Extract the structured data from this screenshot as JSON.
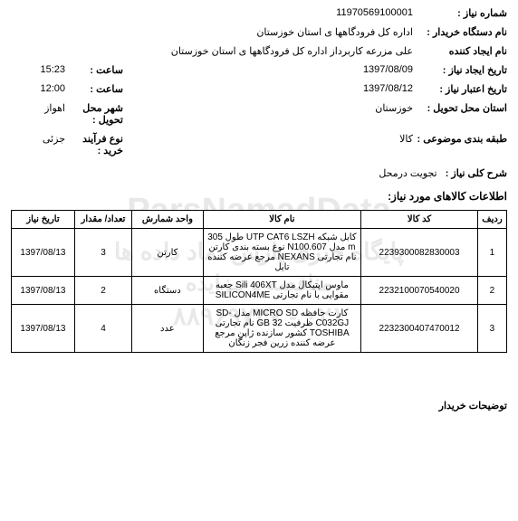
{
  "watermark_line1": "ParsNamadData",
  "watermark_line2": "پایگاه خبری پارس نماد داده ها",
  "watermark_line3": "مناقصه و مزایده",
  "watermark_line4": "۰۲۱ - ۸۸۹۶۹۷۳۷",
  "header": {
    "need_no_label": "شماره نیاز :",
    "need_no": "11970569100001",
    "buyer_label": "نام دستگاه خریدار :",
    "buyer": "اداره کل فرودگاهها ی استان خوزستان",
    "creator_label": "نام ایجاد کننده",
    "creator": "علی مزرعه کاربرداز اداره کل فرودگاهها ی استان خوزستان",
    "create_date_label": "تاریخ ایجاد نیاز :",
    "create_date": "1397/08/09",
    "create_time_label": "ساعت :",
    "create_time": "15:23",
    "valid_date_label": "تاریخ اعتبار نیاز :",
    "valid_date": "1397/08/12",
    "valid_time_label": "ساعت :",
    "valid_time": "12:00",
    "deliver_prov_label": "استان محل تحویل :",
    "deliver_prov": "خوزستان",
    "deliver_city_label": "شهر محل تحویل :",
    "deliver_city": "اهواز",
    "subject_cat_label": "طبقه بندی موضوعی :",
    "subject_cat": "کالا",
    "process_type_label": "نوع فرآیند خرید :",
    "process_type": "جزئی",
    "desc_label": "شرح کلی نیاز :",
    "desc": "تجویت درمحل"
  },
  "items_title": "اطلاعات کالاهای مورد نیاز:",
  "cols": {
    "idx": "ردیف",
    "code": "کد کالا",
    "name": "نام کالا",
    "unit": "واحد شمارش",
    "qty": "تعداد/ مقدار",
    "date": "تاریخ نیاز"
  },
  "rows": [
    {
      "idx": "1",
      "code": "2239300082830003",
      "name": "کابل شبکه UTP CAT6 LSZH طول 305 m مدل N100.607 نوع بسته بندی کارتن نام تجارتی NEXANS مرجع عرضه کننده تایل",
      "unit": "کارتن",
      "qty": "3",
      "date": "1397/08/13"
    },
    {
      "idx": "2",
      "code": "2232100070540020",
      "name": "ماوس اپتیکال مدل Sili 406XT جعبه مقوایی با نام تجارتی SILICON4ME",
      "unit": "دستگاه",
      "qty": "2",
      "date": "1397/08/13"
    },
    {
      "idx": "3",
      "code": "2232300407470012",
      "name": "کارت حافظه MICRO SD مدل SD-C032GJ ظرفیت 32 GB نام تجارتی TOSHIBA کشور سازنده ژاپن مرجع عرضه کننده زرین فجر زنگان",
      "unit": "عدد",
      "qty": "4",
      "date": "1397/08/13"
    }
  ],
  "footer": "توضیحات خریدار"
}
